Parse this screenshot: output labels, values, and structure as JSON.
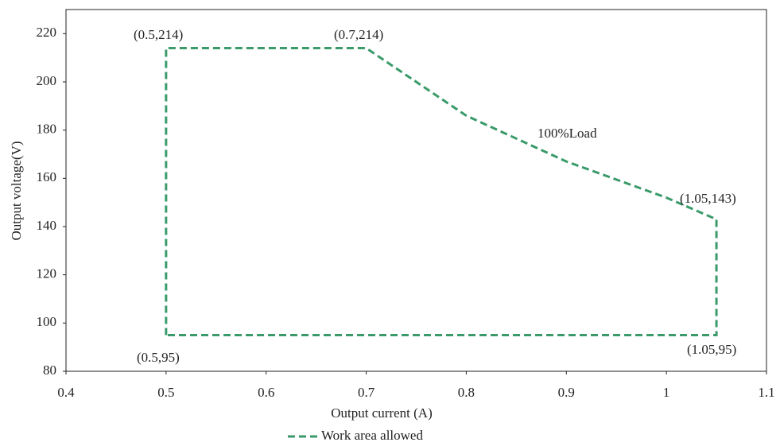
{
  "chart_data": {
    "type": "line",
    "x_label": "Output current (A)",
    "y_label": "Output voltage(V)",
    "x": [
      0.5,
      0.5,
      0.7,
      0.8,
      0.9,
      1.0,
      1.05,
      1.05,
      0.5
    ],
    "series": [
      {
        "name": "Work area allowed",
        "color": "#3a9a6a",
        "values": [
          95,
          214,
          214,
          186,
          167,
          152,
          143,
          95,
          95
        ]
      }
    ],
    "xlim": [
      0.4,
      1.1
    ],
    "xticks": [
      0.4,
      0.5,
      0.6,
      0.7,
      0.8,
      0.9,
      1,
      1.1
    ],
    "ylim": [
      80,
      230
    ],
    "yticks": [
      80,
      100,
      120,
      140,
      160,
      180,
      200,
      220
    ],
    "annotations": [
      "(0.5,214)",
      "(0.7,214)",
      "100%Load",
      "(1.05,143)",
      "(0.5,95)",
      "(1.05,95)"
    ],
    "legend": "bottom"
  }
}
